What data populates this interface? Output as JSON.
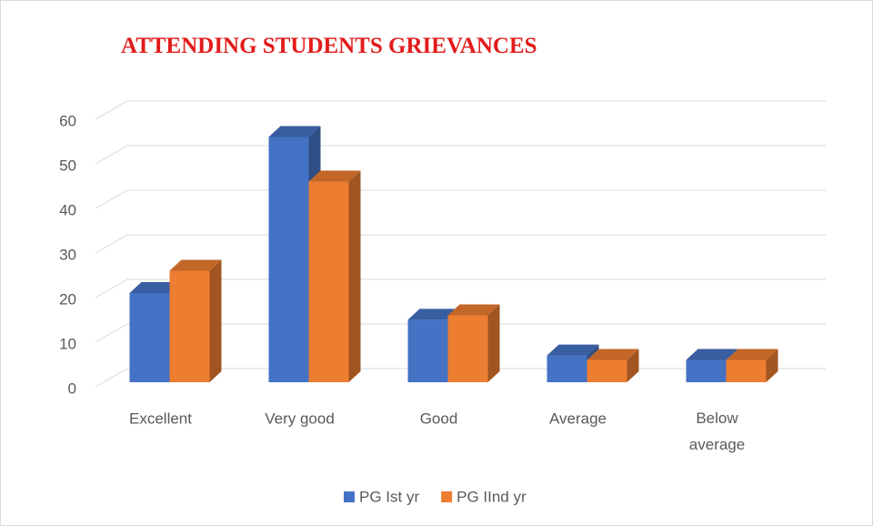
{
  "chart_data": {
    "type": "bar3d",
    "title": "ATTENDING STUDENTS GRIEVANCES",
    "categories": [
      "Excellent",
      "Very good",
      "Good",
      "Average",
      "Below average"
    ],
    "series": [
      {
        "name": "PG Ist yr",
        "color": "#4472c4",
        "values": [
          20,
          55,
          14,
          6,
          5
        ]
      },
      {
        "name": "PG IInd yr",
        "color": "#ed7d31",
        "values": [
          25,
          45,
          15,
          5,
          5
        ]
      }
    ],
    "ylim": [
      0,
      60
    ],
    "yticks": [
      0,
      10,
      20,
      30,
      40,
      50,
      60
    ],
    "grid": true,
    "legend": "bottom"
  }
}
